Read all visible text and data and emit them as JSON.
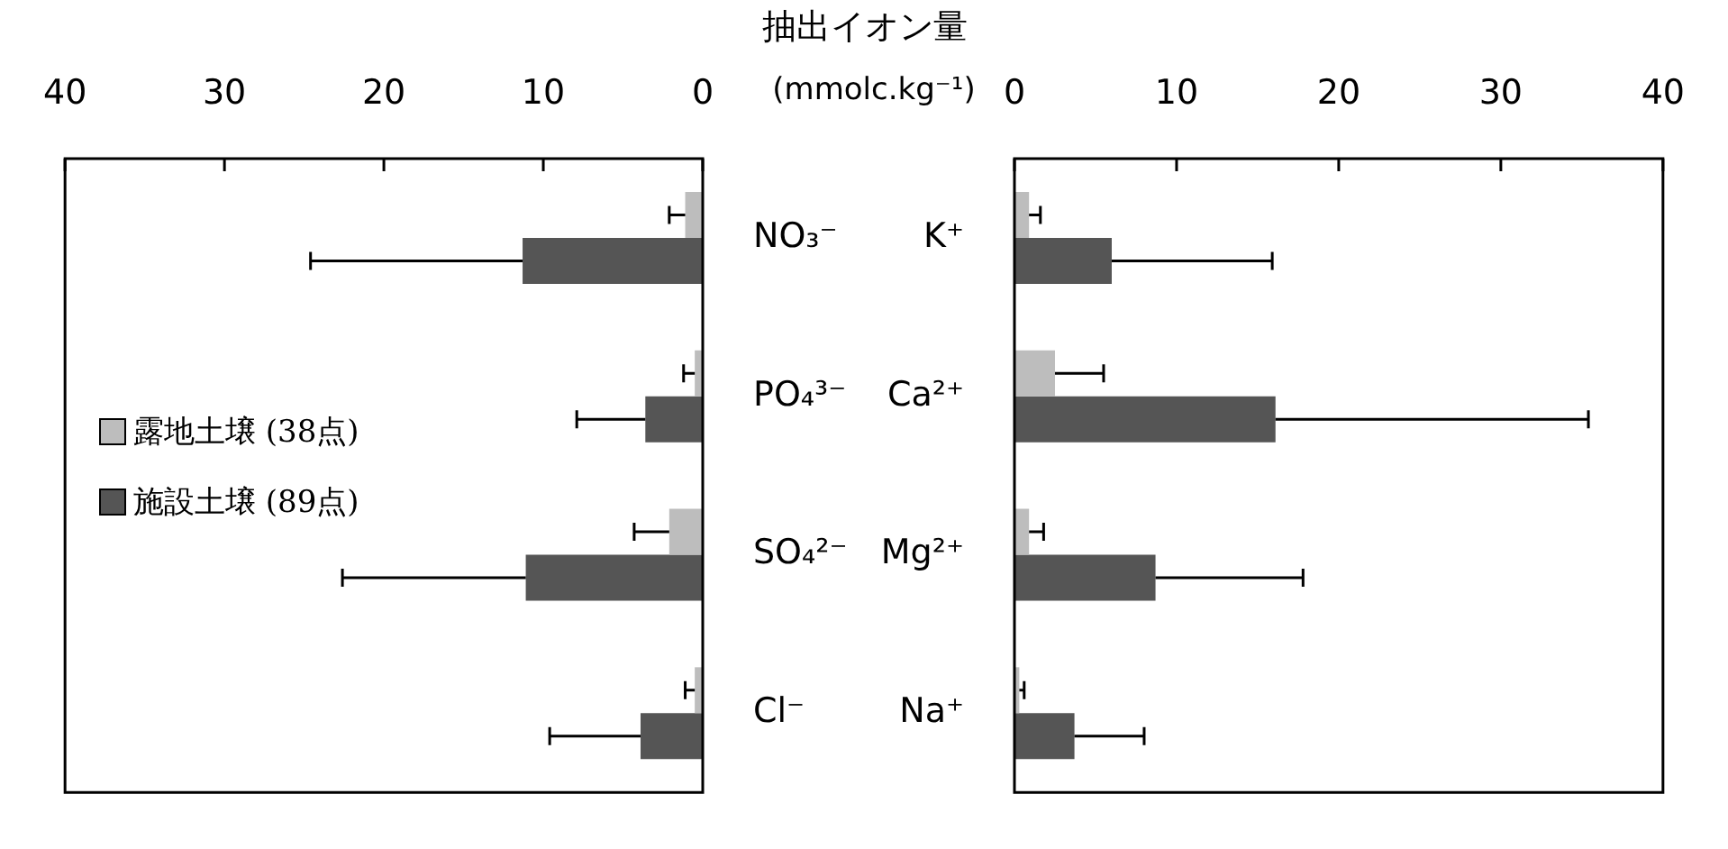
{
  "chart_data": [
    {
      "type": "bar",
      "orientation": "horizontal",
      "title": "抽出イオン量",
      "xlabel": "(mmolc.kg⁻¹)",
      "categories": [
        "NO₃⁻",
        "PO₄³⁻",
        "SO₄²⁻",
        "Cl⁻"
      ],
      "series": [
        {
          "name": "露地土壌 (38点)",
          "color": "#bdbdbd",
          "values": [
            1.1,
            0.5,
            2.1,
            0.5
          ],
          "errors": [
            1.0,
            0.7,
            2.2,
            0.6
          ]
        },
        {
          "name": "施設土壌 (89点)",
          "color": "#555555",
          "values": [
            11.3,
            3.6,
            11.1,
            3.9
          ],
          "errors": [
            13.3,
            4.3,
            11.5,
            5.7
          ]
        }
      ],
      "xlim": [
        40,
        0
      ],
      "xticks": [
        40,
        30,
        20,
        10,
        0
      ],
      "grid": false,
      "legend": "left"
    },
    {
      "type": "bar",
      "orientation": "horizontal",
      "categories": [
        "K⁺",
        "Ca²⁺",
        "Mg²⁺",
        "Na⁺"
      ],
      "series": [
        {
          "color": "#bdbdbd",
          "values": [
            0.9,
            2.5,
            0.9,
            0.3
          ],
          "errors": [
            0.7,
            3.0,
            0.9,
            0.3
          ]
        },
        {
          "color": "#555555",
          "values": [
            6.0,
            16.1,
            8.7,
            3.7
          ],
          "errors": [
            9.9,
            19.3,
            9.1,
            4.3
          ]
        }
      ],
      "xlim": [
        0,
        40
      ],
      "xticks": [
        0,
        10,
        20,
        30,
        40
      ],
      "grid": false,
      "legend": false
    }
  ]
}
